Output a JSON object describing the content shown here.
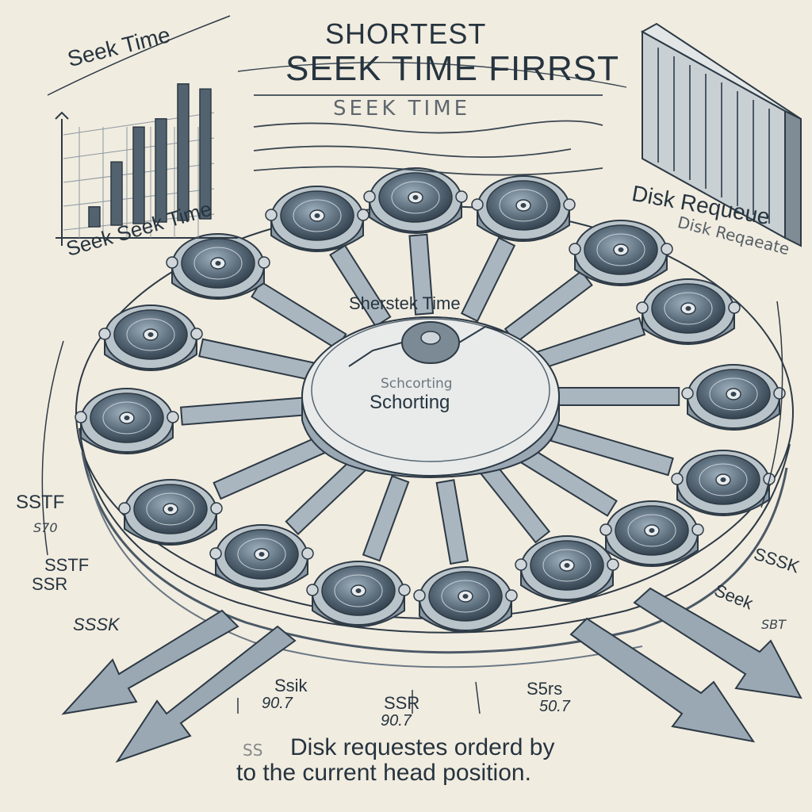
{
  "title": {
    "line1": "SHORTEST",
    "line2": "SEEK TIME FIRRST"
  },
  "subtitle_scribble": "SEEK TIME",
  "chart": {
    "title": "Seek Time",
    "caption": "Seek Seek Time",
    "bar_values": [
      12,
      38,
      58,
      62,
      82,
      78
    ]
  },
  "disk_label": "Disk Requeue",
  "side_label": "Disk Reqaeate",
  "center": {
    "top": "Sherstek Time",
    "scribble": "Schcorting",
    "bottom": "Schorting"
  },
  "left_labels": [
    "SSTF",
    "S70",
    "SSTF",
    "SSR",
    "SSSK"
  ],
  "right_labels": [
    "SSSK",
    "Seek",
    "SBT"
  ],
  "bottom_labels": [
    "Ssik",
    "90.7",
    "SSR",
    "90.7",
    "S5rs",
    "50.7"
  ],
  "caption": {
    "prefix": "SS",
    "line1": "Disk requestes orderd by",
    "line2": "to the current head position."
  },
  "colors": {
    "ink": "#26343f",
    "paper": "#f1ece0",
    "disk": "#5e6f7e"
  }
}
